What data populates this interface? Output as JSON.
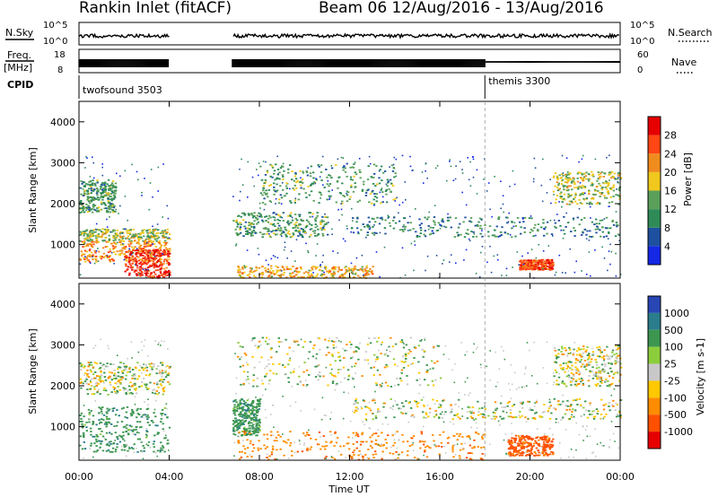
{
  "header": {
    "station": "Rankin Inlet (fitACF)",
    "beam_dates": "Beam 06 12/Aug/2016 - 13/Aug/2016"
  },
  "noise_panel": {
    "left_label": "N.Sky",
    "right_label": "N.Search",
    "top_tick": "10^5",
    "bottom_tick": "10^0"
  },
  "freq_panel": {
    "left_label_top": "Freq.",
    "left_label_bottom": "[MHz]",
    "left_top_tick": "18",
    "left_bottom_tick": "8",
    "right_label": "Nave",
    "right_top_tick": "60",
    "right_bottom_tick": "0"
  },
  "cpid_panel": {
    "label": "CPID",
    "modes": [
      {
        "name": "twofsound 3503",
        "start_hour": 0
      },
      {
        "name": "themis 3300",
        "start_hour": 18.0
      }
    ]
  },
  "axes": {
    "ylabel": "Slant Range [km]",
    "yticks": [
      "1000",
      "2000",
      "3000",
      "4000"
    ],
    "xticks": [
      "00:00",
      "04:00",
      "08:00",
      "12:00",
      "16:00",
      "20:00",
      "00:00"
    ],
    "xlabel": "Time UT"
  },
  "power_colorbar": {
    "label": "Power [dB]",
    "ticks": [
      "4",
      "8",
      "12",
      "16",
      "20",
      "24",
      "28"
    ],
    "colors": [
      "#1428e6",
      "#1e50a0",
      "#2e8b57",
      "#5aa05a",
      "#f0c81e",
      "#f08c1e",
      "#ff4614",
      "#e60000"
    ]
  },
  "velocity_colorbar": {
    "label": "Velocity [m s-1]",
    "ticks": [
      "1000",
      "500",
      "100",
      "25",
      "-25",
      "-100",
      "-500",
      "-1000"
    ],
    "colors": [
      "#2846b4",
      "#2a7d8c",
      "#3c9650",
      "#8ccd3c",
      "#c8c8c8",
      "#ffc800",
      "#ff8c00",
      "#ff5000",
      "#e60000"
    ]
  },
  "chart_data": {
    "type": "heatmap",
    "x_range_hours": [
      0,
      24
    ],
    "y_range_km": [
      180,
      4500
    ],
    "data_gap_hours": [
      4.0,
      6.8
    ],
    "mode_change_hour": 18.0,
    "power_regions": [
      {
        "t0": 0.0,
        "t1": 1.6,
        "r0": 1800,
        "r1": 2600,
        "db": 12
      },
      {
        "t0": 0.0,
        "t1": 4.0,
        "r0": 1100,
        "r1": 1400,
        "db": 16
      },
      {
        "t0": 0.0,
        "t1": 4.0,
        "r0": 600,
        "r1": 1100,
        "db": 22
      },
      {
        "t0": 2.0,
        "t1": 4.0,
        "r0": 200,
        "r1": 900,
        "db": 28
      },
      {
        "t0": 6.8,
        "t1": 11.0,
        "r0": 1200,
        "r1": 1800,
        "db": 12
      },
      {
        "t0": 7.0,
        "t1": 13.0,
        "r0": 200,
        "r1": 500,
        "db": 20
      },
      {
        "t0": 8.0,
        "t1": 14.0,
        "r0": 2000,
        "r1": 3000,
        "db": 12
      },
      {
        "t0": 12.0,
        "t1": 24.0,
        "r0": 1200,
        "r1": 1700,
        "db": 10
      },
      {
        "t0": 19.5,
        "t1": 21.0,
        "r0": 400,
        "r1": 650,
        "db": 26
      },
      {
        "t0": 21.0,
        "t1": 24.0,
        "r0": 2000,
        "r1": 2800,
        "db": 16
      }
    ],
    "velocity_regions": [
      {
        "t0": 0.0,
        "t1": 4.0,
        "r0": 1800,
        "r1": 2600,
        "v": 0
      },
      {
        "t0": 0.0,
        "t1": 4.0,
        "r0": 400,
        "r1": 1500,
        "v": 200
      },
      {
        "t0": 6.8,
        "t1": 8.0,
        "r0": 800,
        "r1": 1700,
        "v": 200
      },
      {
        "t0": 7.0,
        "t1": 18.0,
        "r0": 200,
        "r1": 900,
        "v": -400
      },
      {
        "t0": 7.0,
        "t1": 16.0,
        "r0": 2000,
        "r1": 3200,
        "v": 0
      },
      {
        "t0": 12.0,
        "t1": 24.0,
        "r0": 1200,
        "r1": 1700,
        "v": 0
      },
      {
        "t0": 19.0,
        "t1": 21.0,
        "r0": 300,
        "r1": 800,
        "v": -600
      },
      {
        "t0": 21.0,
        "t1": 24.0,
        "r0": 2000,
        "r1": 3000,
        "v": 0
      }
    ]
  }
}
